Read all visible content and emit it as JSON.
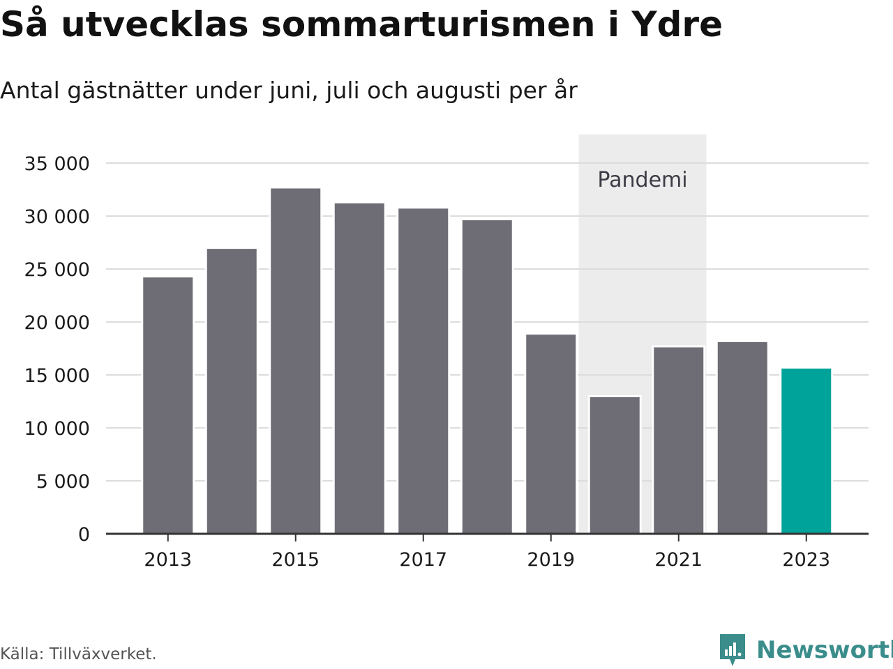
{
  "header": {
    "title": "Så utvecklas sommarturismen i Ydre",
    "subtitle": "Antal gästnätter under juni, juli och augusti per år"
  },
  "footer": {
    "source": "Källa: Tillväxverket.",
    "brand": "Newsworthy",
    "brand_icon": "newsworthy-logo-icon"
  },
  "chart_data": {
    "type": "bar",
    "title": "Så utvecklas sommarturismen i Ydre",
    "subtitle": "Antal gästnätter under juni, juli och augusti per år",
    "xlabel": "",
    "ylabel": "",
    "categories": [
      "2013",
      "2014",
      "2015",
      "2016",
      "2017",
      "2018",
      "2019",
      "2020",
      "2021",
      "2022",
      "2023"
    ],
    "values": [
      24300,
      27000,
      32700,
      31300,
      30800,
      29700,
      18900,
      13000,
      17700,
      18200,
      15700
    ],
    "x_tick_labels": [
      "2013",
      "2015",
      "2017",
      "2019",
      "2021",
      "2023"
    ],
    "y_ticks": [
      0,
      5000,
      10000,
      15000,
      20000,
      25000,
      30000,
      35000
    ],
    "y_tick_labels": [
      "0",
      "5 000",
      "10 000",
      "15 000",
      "20 000",
      "25 000",
      "30 000",
      "35 000"
    ],
    "ylim": [
      0,
      37500
    ],
    "grid": true,
    "highlight": {
      "category": "2023",
      "color": "#00a39a"
    },
    "bar_color": "#6e6d75",
    "annotation": {
      "label": "Pandemi",
      "from": "2020",
      "to": "2021",
      "color": "#ececec"
    }
  }
}
